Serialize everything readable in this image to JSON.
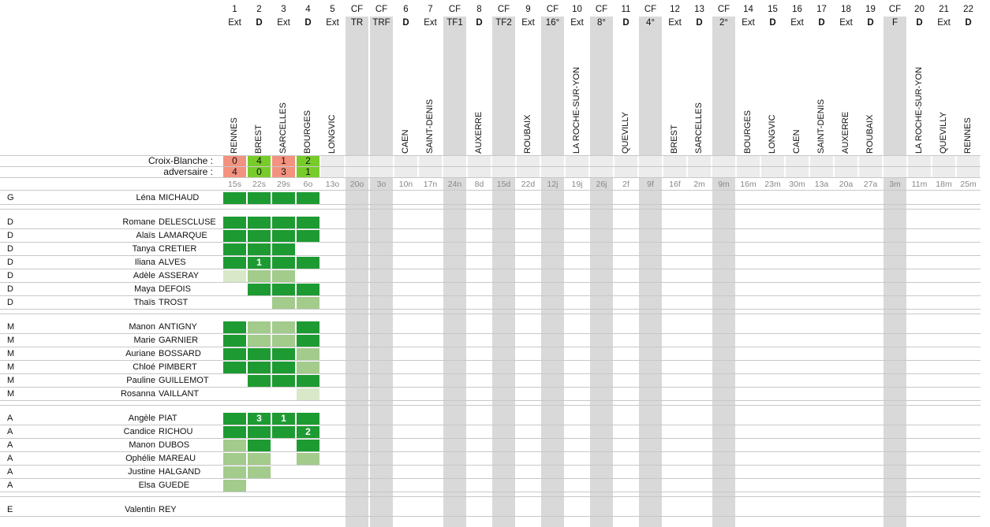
{
  "colors": {
    "full": "#1d9b32",
    "partial": "#a2cb8c",
    "light": "#d8e8c9",
    "win": "#78cc2a",
    "loss": "#f3927f",
    "cf_column": "#d9d9d9"
  },
  "score_labels": {
    "team": "Croix-Blanche :",
    "opponent": "adversaire :"
  },
  "matches": [
    {
      "num": "1",
      "type": "Ext",
      "bold": false,
      "opp": "RENNES",
      "team_score": "0",
      "opp_score": "4",
      "result": "loss",
      "date": "15s",
      "cf": false
    },
    {
      "num": "2",
      "type": "D",
      "bold": true,
      "opp": "BREST",
      "team_score": "4",
      "opp_score": "0",
      "result": "win",
      "date": "22s",
      "cf": false
    },
    {
      "num": "3",
      "type": "Ext",
      "bold": false,
      "opp": "SARCELLES",
      "team_score": "1",
      "opp_score": "3",
      "result": "loss",
      "date": "29s",
      "cf": false
    },
    {
      "num": "4",
      "type": "D",
      "bold": true,
      "opp": "BOURGES",
      "team_score": "2",
      "opp_score": "1",
      "result": "win",
      "date": "6o",
      "cf": false
    },
    {
      "num": "5",
      "type": "Ext",
      "bold": false,
      "opp": "LONGVIC",
      "team_score": "",
      "opp_score": "",
      "result": "",
      "date": "13o",
      "cf": false
    },
    {
      "num": "CF",
      "type": "TR",
      "bold": false,
      "opp": "",
      "team_score": "",
      "opp_score": "",
      "result": "",
      "date": "20o",
      "cf": true
    },
    {
      "num": "CF",
      "type": "TRF",
      "bold": false,
      "opp": "",
      "team_score": "",
      "opp_score": "",
      "result": "",
      "date": "3o",
      "cf": true
    },
    {
      "num": "6",
      "type": "D",
      "bold": true,
      "opp": "CAEN",
      "team_score": "",
      "opp_score": "",
      "result": "",
      "date": "10n",
      "cf": false
    },
    {
      "num": "7",
      "type": "Ext",
      "bold": false,
      "opp": "SAINT-DENIS",
      "team_score": "",
      "opp_score": "",
      "result": "",
      "date": "17n",
      "cf": false
    },
    {
      "num": "CF",
      "type": "TF1",
      "bold": false,
      "opp": "",
      "team_score": "",
      "opp_score": "",
      "result": "",
      "date": "24n",
      "cf": true
    },
    {
      "num": "8",
      "type": "D",
      "bold": true,
      "opp": "AUXERRE",
      "team_score": "",
      "opp_score": "",
      "result": "",
      "date": "8d",
      "cf": false
    },
    {
      "num": "CF",
      "type": "TF2",
      "bold": false,
      "opp": "",
      "team_score": "",
      "opp_score": "",
      "result": "",
      "date": "15d",
      "cf": true
    },
    {
      "num": "9",
      "type": "Ext",
      "bold": false,
      "opp": "ROUBAIX",
      "team_score": "",
      "opp_score": "",
      "result": "",
      "date": "22d",
      "cf": false
    },
    {
      "num": "CF",
      "type": "16°",
      "bold": false,
      "opp": "",
      "team_score": "",
      "opp_score": "",
      "result": "",
      "date": "12j",
      "cf": true
    },
    {
      "num": "10",
      "type": "Ext",
      "bold": false,
      "opp": "LA ROCHE-SUR-YON",
      "team_score": "",
      "opp_score": "",
      "result": "",
      "date": "19j",
      "cf": false
    },
    {
      "num": "CF",
      "type": "8°",
      "bold": false,
      "opp": "",
      "team_score": "",
      "opp_score": "",
      "result": "",
      "date": "26j",
      "cf": true
    },
    {
      "num": "11",
      "type": "D",
      "bold": true,
      "opp": "QUEVILLY",
      "team_score": "",
      "opp_score": "",
      "result": "",
      "date": "2f",
      "cf": false
    },
    {
      "num": "CF",
      "type": "4°",
      "bold": false,
      "opp": "",
      "team_score": "",
      "opp_score": "",
      "result": "",
      "date": "9f",
      "cf": true
    },
    {
      "num": "12",
      "type": "Ext",
      "bold": false,
      "opp": "BREST",
      "team_score": "",
      "opp_score": "",
      "result": "",
      "date": "16f",
      "cf": false
    },
    {
      "num": "13",
      "type": "D",
      "bold": true,
      "opp": "SARCELLES",
      "team_score": "",
      "opp_score": "",
      "result": "",
      "date": "2m",
      "cf": false
    },
    {
      "num": "CF",
      "type": "2°",
      "bold": false,
      "opp": "",
      "team_score": "",
      "opp_score": "",
      "result": "",
      "date": "9m",
      "cf": true
    },
    {
      "num": "14",
      "type": "Ext",
      "bold": false,
      "opp": "BOURGES",
      "team_score": "",
      "opp_score": "",
      "result": "",
      "date": "16m",
      "cf": false
    },
    {
      "num": "15",
      "type": "D",
      "bold": true,
      "opp": "LONGVIC",
      "team_score": "",
      "opp_score": "",
      "result": "",
      "date": "23m",
      "cf": false
    },
    {
      "num": "16",
      "type": "Ext",
      "bold": false,
      "opp": "CAEN",
      "team_score": "",
      "opp_score": "",
      "result": "",
      "date": "30m",
      "cf": false
    },
    {
      "num": "17",
      "type": "D",
      "bold": true,
      "opp": "SAINT-DENIS",
      "team_score": "",
      "opp_score": "",
      "result": "",
      "date": "13a",
      "cf": false
    },
    {
      "num": "18",
      "type": "Ext",
      "bold": false,
      "opp": "AUXERRE",
      "team_score": "",
      "opp_score": "",
      "result": "",
      "date": "20a",
      "cf": false
    },
    {
      "num": "19",
      "type": "D",
      "bold": true,
      "opp": "ROUBAIX",
      "team_score": "",
      "opp_score": "",
      "result": "",
      "date": "27a",
      "cf": false
    },
    {
      "num": "CF",
      "type": "F",
      "bold": false,
      "opp": "",
      "team_score": "",
      "opp_score": "",
      "result": "",
      "date": "3m",
      "cf": true
    },
    {
      "num": "20",
      "type": "D",
      "bold": true,
      "opp": "LA ROCHE-SUR-YON",
      "team_score": "",
      "opp_score": "",
      "result": "",
      "date": "11m",
      "cf": false
    },
    {
      "num": "21",
      "type": "Ext",
      "bold": false,
      "opp": "QUEVILLY",
      "team_score": "",
      "opp_score": "",
      "result": "",
      "date": "18m",
      "cf": false
    },
    {
      "num": "22",
      "type": "D",
      "bold": true,
      "opp": "RENNES",
      "team_score": "",
      "opp_score": "",
      "result": "",
      "date": "25m",
      "cf": false
    }
  ],
  "players": [
    {
      "pos": "G",
      "first": "Léna",
      "last": "MICHAUD",
      "cells": [
        {
          "l": "full",
          "t": ""
        },
        {
          "l": "full",
          "t": ""
        },
        {
          "l": "full",
          "t": ""
        },
        {
          "l": "full",
          "t": ""
        }
      ]
    },
    {
      "sep": true
    },
    {
      "pos": "D",
      "first": "Romane",
      "last": "DELESCLUSE",
      "cells": [
        {
          "l": "full",
          "t": ""
        },
        {
          "l": "full",
          "t": ""
        },
        {
          "l": "full",
          "t": ""
        },
        {
          "l": "full",
          "t": ""
        }
      ]
    },
    {
      "pos": "D",
      "first": "Alaïs",
      "last": "LAMARQUE",
      "cells": [
        {
          "l": "full",
          "t": ""
        },
        {
          "l": "full",
          "t": ""
        },
        {
          "l": "full",
          "t": ""
        },
        {
          "l": "full",
          "t": ""
        }
      ]
    },
    {
      "pos": "D",
      "first": "Tanya",
      "last": "CRETIER",
      "cells": [
        {
          "l": "full",
          "t": ""
        },
        {
          "l": "full",
          "t": ""
        },
        {
          "l": "full",
          "t": ""
        },
        {
          "l": "",
          "t": ""
        }
      ]
    },
    {
      "pos": "D",
      "first": "Iliana",
      "last": "ALVES",
      "cells": [
        {
          "l": "full",
          "t": ""
        },
        {
          "l": "full",
          "t": "1"
        },
        {
          "l": "full",
          "t": ""
        },
        {
          "l": "full",
          "t": ""
        }
      ]
    },
    {
      "pos": "D",
      "first": "Adèle",
      "last": "ASSERAY",
      "cells": [
        {
          "l": "light",
          "t": ""
        },
        {
          "l": "partial",
          "t": ""
        },
        {
          "l": "partial",
          "t": ""
        },
        {
          "l": "",
          "t": ""
        }
      ]
    },
    {
      "pos": "D",
      "first": "Maya",
      "last": "DEFOIS",
      "cells": [
        {
          "l": "",
          "t": ""
        },
        {
          "l": "full",
          "t": ""
        },
        {
          "l": "full",
          "t": ""
        },
        {
          "l": "full",
          "t": ""
        }
      ]
    },
    {
      "pos": "D",
      "first": "Thaïs",
      "last": "TROST",
      "cells": [
        {
          "l": "",
          "t": ""
        },
        {
          "l": "",
          "t": ""
        },
        {
          "l": "partial",
          "t": ""
        },
        {
          "l": "partial",
          "t": ""
        }
      ]
    },
    {
      "sep": true
    },
    {
      "pos": "M",
      "first": "Manon",
      "last": "ANTIGNY",
      "cells": [
        {
          "l": "full",
          "t": ""
        },
        {
          "l": "partial",
          "t": ""
        },
        {
          "l": "partial",
          "t": ""
        },
        {
          "l": "full",
          "t": ""
        }
      ]
    },
    {
      "pos": "M",
      "first": "Marie",
      "last": "GARNIER",
      "cells": [
        {
          "l": "full",
          "t": ""
        },
        {
          "l": "partial",
          "t": ""
        },
        {
          "l": "partial",
          "t": ""
        },
        {
          "l": "full",
          "t": ""
        }
      ]
    },
    {
      "pos": "M",
      "first": "Auriane",
      "last": "BOSSARD",
      "cells": [
        {
          "l": "full",
          "t": ""
        },
        {
          "l": "full",
          "t": ""
        },
        {
          "l": "full",
          "t": ""
        },
        {
          "l": "partial",
          "t": ""
        }
      ]
    },
    {
      "pos": "M",
      "first": "Chloé",
      "last": "PIMBERT",
      "cells": [
        {
          "l": "full",
          "t": ""
        },
        {
          "l": "full",
          "t": ""
        },
        {
          "l": "full",
          "t": ""
        },
        {
          "l": "partial",
          "t": ""
        }
      ]
    },
    {
      "pos": "M",
      "first": "Pauline",
      "last": "GUILLEMOT",
      "cells": [
        {
          "l": "",
          "t": ""
        },
        {
          "l": "full",
          "t": ""
        },
        {
          "l": "full",
          "t": ""
        },
        {
          "l": "full",
          "t": ""
        }
      ]
    },
    {
      "pos": "M",
      "first": "Rosanna",
      "last": "VAILLANT",
      "cells": [
        {
          "l": "",
          "t": ""
        },
        {
          "l": "",
          "t": ""
        },
        {
          "l": "",
          "t": ""
        },
        {
          "l": "light",
          "t": ""
        }
      ]
    },
    {
      "sep": true
    },
    {
      "pos": "A",
      "first": "Angèle",
      "last": "PIAT",
      "cells": [
        {
          "l": "full",
          "t": ""
        },
        {
          "l": "full",
          "t": "3"
        },
        {
          "l": "full",
          "t": "1"
        },
        {
          "l": "full",
          "t": ""
        }
      ]
    },
    {
      "pos": "A",
      "first": "Candice",
      "last": "RICHOU",
      "cells": [
        {
          "l": "full",
          "t": ""
        },
        {
          "l": "full",
          "t": ""
        },
        {
          "l": "full",
          "t": ""
        },
        {
          "l": "full",
          "t": "2"
        }
      ]
    },
    {
      "pos": "A",
      "first": "Manon",
      "last": "DUBOS",
      "cells": [
        {
          "l": "partial",
          "t": ""
        },
        {
          "l": "full",
          "t": ""
        },
        {
          "l": "",
          "t": ""
        },
        {
          "l": "full",
          "t": ""
        }
      ]
    },
    {
      "pos": "A",
      "first": "Ophélie",
      "last": "MAREAU",
      "cells": [
        {
          "l": "partial",
          "t": ""
        },
        {
          "l": "partial",
          "t": ""
        },
        {
          "l": "",
          "t": ""
        },
        {
          "l": "partial",
          "t": ""
        }
      ]
    },
    {
      "pos": "A",
      "first": "Justine",
      "last": "HALGAND",
      "cells": [
        {
          "l": "partial",
          "t": ""
        },
        {
          "l": "partial",
          "t": ""
        },
        {
          "l": "",
          "t": ""
        },
        {
          "l": "",
          "t": ""
        }
      ]
    },
    {
      "pos": "A",
      "first": "Elsa",
      "last": "GUEDE",
      "cells": [
        {
          "l": "partial",
          "t": ""
        },
        {
          "l": "",
          "t": ""
        },
        {
          "l": "",
          "t": ""
        },
        {
          "l": "",
          "t": ""
        }
      ]
    },
    {
      "sep": true
    },
    {
      "pos": "E",
      "first": "Valentin",
      "last": "REY",
      "cells": [
        {
          "l": "",
          "t": ""
        },
        {
          "l": "",
          "t": ""
        },
        {
          "l": "",
          "t": ""
        },
        {
          "l": "",
          "t": ""
        }
      ]
    }
  ]
}
